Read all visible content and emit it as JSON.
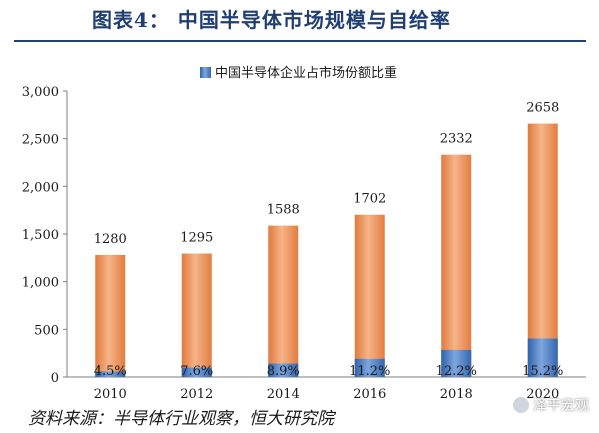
{
  "title": "图表4：  中国半导体市场规模与自给率",
  "source": "资料来源：半导体行业观察，恒大研究院",
  "watermark": "泽平宏观",
  "colors": {
    "title": "#1f3f73",
    "market_bar": "#ec8a4d",
    "share_bar": "#3f74c2"
  },
  "chart_data": {
    "type": "bar",
    "categories": [
      "2010",
      "2012",
      "2014",
      "2016",
      "2018",
      "2020"
    ],
    "series": [
      {
        "name": "",
        "values": [
          1280,
          1295,
          1588,
          1702,
          2332,
          2658
        ],
        "labels": [
          "1280",
          "1295",
          "1588",
          "1702",
          "2332",
          "2658"
        ]
      },
      {
        "name": "中国半导体企业占市场份额比重",
        "values": [
          4.5,
          7.6,
          8.9,
          11.2,
          12.2,
          15.2
        ],
        "labels": [
          "4.5%",
          "7.6%",
          "8.9%",
          "11.2%",
          "12.2%",
          "15.2%"
        ]
      }
    ],
    "yticks": [
      "0",
      "500",
      "1,000",
      "1,500",
      "2,000",
      "2,500",
      "3,000"
    ],
    "ylim": [
      0,
      3000
    ],
    "legend": "top-center",
    "grid": false
  }
}
